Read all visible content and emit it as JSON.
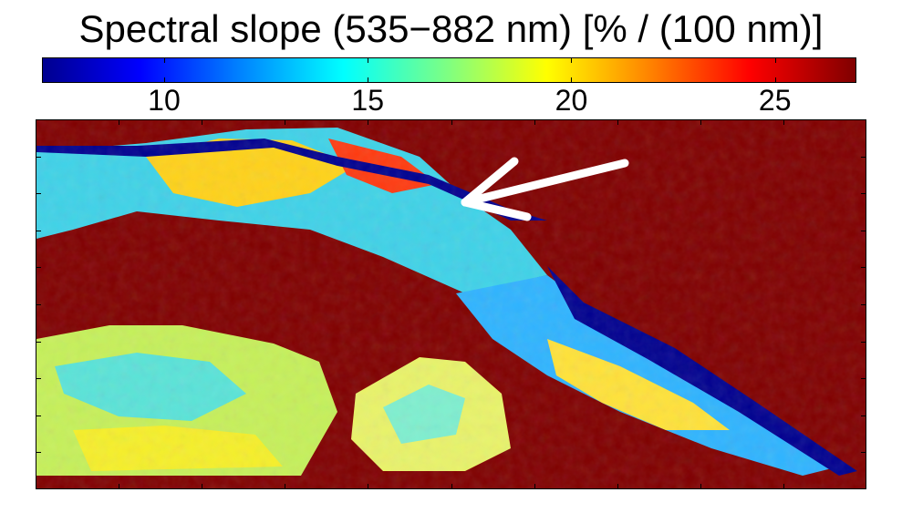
{
  "chart_data": {
    "type": "heatmap",
    "title": "Spectral slope (535−882 nm) [% / (100 nm)]",
    "colorbar": {
      "colormap": "jet",
      "range": [
        7,
        27
      ],
      "ticks": [
        "10",
        "15",
        "20",
        "25"
      ],
      "tick_values": [
        10,
        15,
        20,
        25
      ],
      "orientation": "horizontal",
      "placement": "top"
    },
    "xlabel": "",
    "ylabel": "",
    "grid": false,
    "annotations": [
      {
        "type": "arrow",
        "color": "#ffffff",
        "description_visible": false
      }
    ],
    "regions": [
      {
        "label": "",
        "value_level": 27
      },
      {
        "label": "",
        "value_level": 18
      },
      {
        "label": "",
        "value_level": 10
      }
    ]
  },
  "colors": {
    "saturated": "#800000",
    "background": "#ffffff",
    "arrow": "#ffffff"
  }
}
